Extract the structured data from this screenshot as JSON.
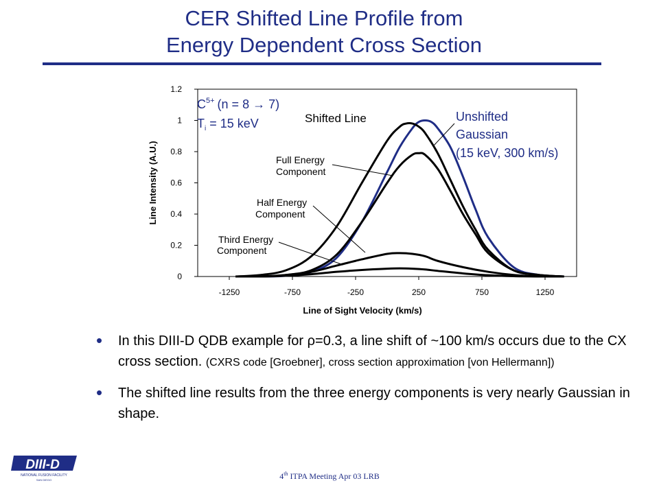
{
  "slide": {
    "title_line1": "CER Shifted Line Profile from",
    "title_line2": "Energy Dependent Cross Section",
    "bullets": [
      {
        "main_before": "In this DIII-D QDB example for ",
        "rho": "ρ",
        "main_after": "=0.3, a line shift of ~100 km/s occurs due to the CX cross section.",
        "small": "(CXRS code [Groebner], cross section approximation [von Hellermann])"
      },
      {
        "main": "The shifted line results from the three energy components is very nearly Gaussian in shape."
      }
    ],
    "footer_sup": "th",
    "footer_prefix": "4",
    "footer_rest": " ITPA Meeting  Apr 03  LRB",
    "logo_text": "DIII-D",
    "logo_sub": "NATIONAL FUSION FACILITY",
    "logo_sub2": "SAN DIEGO"
  },
  "colors": {
    "title": "#1f2d86",
    "unshifted": "#1f2d86",
    "components": "#000000"
  },
  "chart_data": {
    "type": "line",
    "xlabel": "Line of Sight Velocity (km/s)",
    "ylabel": "Line Intensity (A.U.)",
    "xlim": [
      -1500,
      1500
    ],
    "ylim": [
      0,
      1.2
    ],
    "xticks": [
      -1250,
      -750,
      -250,
      250,
      750,
      1250
    ],
    "yticks": [
      0,
      0.2,
      0.4,
      0.6,
      0.8,
      1,
      1.2
    ],
    "ytick_labels": [
      "0",
      "0.2",
      "0.4",
      "0.6",
      "0.8",
      "1",
      "1.2"
    ],
    "grid": false,
    "series": [
      {
        "name": "Unshifted Gaussian",
        "color": "#1f2d86",
        "x": [
          -1200,
          -1000,
          -800,
          -600,
          -400,
          -200,
          0,
          100,
          200,
          250,
          300,
          350,
          400,
          500,
          600,
          700,
          800,
          1000,
          1200,
          1400
        ],
        "y": [
          0.0,
          0.0,
          0.005,
          0.03,
          0.12,
          0.35,
          0.67,
          0.83,
          0.95,
          0.99,
          1.0,
          0.99,
          0.95,
          0.83,
          0.64,
          0.43,
          0.25,
          0.06,
          0.01,
          0.0
        ]
      },
      {
        "name": "Shifted Line",
        "color": "#000000",
        "x": [
          -1200,
          -1000,
          -800,
          -600,
          -400,
          -200,
          0,
          100,
          150,
          200,
          250,
          300,
          400,
          500,
          600,
          700,
          800,
          1000,
          1200,
          1400
        ],
        "y": [
          0.0,
          0.01,
          0.04,
          0.13,
          0.32,
          0.6,
          0.87,
          0.96,
          0.98,
          0.98,
          0.96,
          0.92,
          0.79,
          0.62,
          0.45,
          0.3,
          0.17,
          0.04,
          0.01,
          0.0
        ]
      },
      {
        "name": "Full Energy Component",
        "color": "#000000",
        "x": [
          -1200,
          -1000,
          -800,
          -600,
          -400,
          -200,
          0,
          100,
          200,
          250,
          300,
          400,
          500,
          600,
          700,
          800,
          1000,
          1200,
          1400
        ],
        "y": [
          0.0,
          0.0,
          0.01,
          0.04,
          0.14,
          0.35,
          0.6,
          0.71,
          0.78,
          0.79,
          0.78,
          0.69,
          0.55,
          0.4,
          0.27,
          0.15,
          0.04,
          0.01,
          0.0
        ]
      },
      {
        "name": "Half Energy Component",
        "color": "#000000",
        "x": [
          -1200,
          -1000,
          -800,
          -600,
          -400,
          -200,
          0,
          100,
          200,
          300,
          400,
          600,
          800,
          1000,
          1200,
          1400
        ],
        "y": [
          0.0,
          0.0,
          0.01,
          0.03,
          0.07,
          0.11,
          0.145,
          0.15,
          0.145,
          0.13,
          0.1,
          0.06,
          0.03,
          0.01,
          0.0,
          0.0
        ]
      },
      {
        "name": "Third Energy Component",
        "color": "#000000",
        "x": [
          -1200,
          -1000,
          -800,
          -600,
          -400,
          -200,
          0,
          100,
          200,
          300,
          400,
          600,
          800,
          1000,
          1200,
          1400
        ],
        "y": [
          0.0,
          0.0,
          0.005,
          0.015,
          0.03,
          0.042,
          0.05,
          0.052,
          0.05,
          0.045,
          0.036,
          0.02,
          0.008,
          0.002,
          0.0,
          0.0
        ]
      }
    ],
    "annotations": {
      "ion_label_prefix": "C",
      "ion_charge": "5+",
      "ion_transition": "(n = 8 → 7)",
      "temp_prefix": "T",
      "temp_sub": "i",
      "temp_rest": " = 15 keV",
      "shifted_line": "Shifted Line",
      "unshifted_l1": "Unshifted",
      "unshifted_l2": "Gaussian",
      "unshifted_l3": "(15 keV, 300 km/s)",
      "full_l1": "Full Energy",
      "full_l2": "Component",
      "half_l1": "Half Energy",
      "half_l2": "Component",
      "third_l1": "Third Energy",
      "third_l2": "Component"
    }
  }
}
